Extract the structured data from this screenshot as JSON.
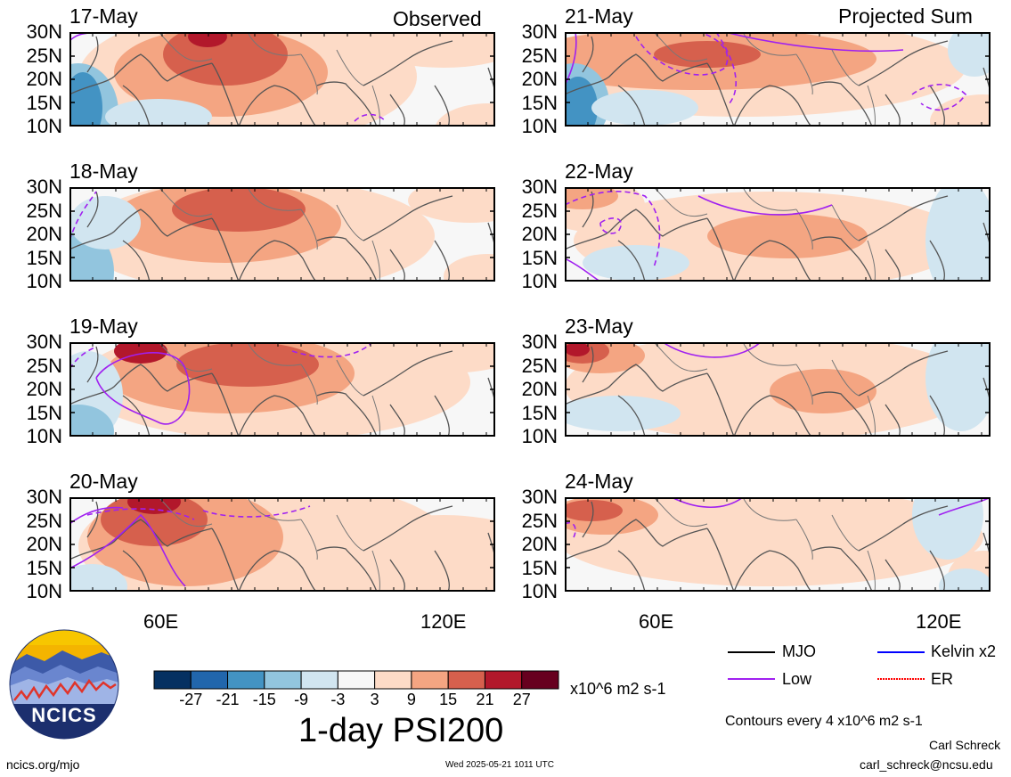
{
  "header": {
    "left_title": "Observed",
    "right_title": "Projected Sum"
  },
  "panels": [
    {
      "date": "17-May"
    },
    {
      "date": "18-May"
    },
    {
      "date": "19-May"
    },
    {
      "date": "20-May"
    },
    {
      "date": "21-May"
    },
    {
      "date": "22-May"
    },
    {
      "date": "23-May"
    },
    {
      "date": "24-May"
    }
  ],
  "lat_labels": [
    "30N",
    "25N",
    "20N",
    "15N",
    "10N"
  ],
  "lon_labels": [
    "60E",
    "120E"
  ],
  "colorbar": {
    "colors": [
      "#053061",
      "#2166ac",
      "#4393c3",
      "#92c5de",
      "#d1e5f0",
      "#f7f7f7",
      "#fddbc7",
      "#f4a582",
      "#d6604d",
      "#b2182b",
      "#67001f"
    ],
    "ticks": [
      "-27",
      "-21",
      "-15",
      "-9",
      "-3",
      "3",
      "9",
      "15",
      "21",
      "27"
    ],
    "units": "x10^6 m2 s-1"
  },
  "legend": {
    "items": [
      {
        "label": "MJO",
        "color": "#000000"
      },
      {
        "label": "Kelvin x2",
        "color": "#0000ff"
      },
      {
        "label": "Low",
        "color": "#a020f0"
      },
      {
        "label": "ER",
        "color": "#ff0000"
      }
    ],
    "contour_note": "Contours every 4 x10^6 m2 s-1"
  },
  "title": "1-day PSI200",
  "logo_text": "NCICS",
  "footer": {
    "url": "ncics.org/mjo",
    "timestamp": "Wed 2025-05-21 1011 UTC",
    "author": "Carl Schreck",
    "email": "carl_schreck@ncsu.edu"
  }
}
